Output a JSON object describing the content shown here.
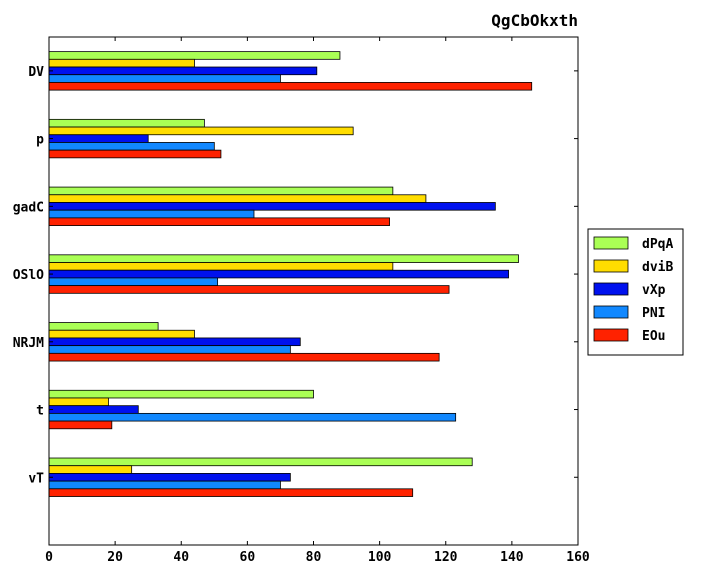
{
  "chart_data": {
    "type": "bar",
    "orientation": "horizontal",
    "title": "QgCbOkxth",
    "xlabel": "",
    "ylabel": "",
    "xlim": [
      0,
      160
    ],
    "xticks": [
      0,
      20,
      40,
      60,
      80,
      100,
      120,
      140,
      160
    ],
    "grid": false,
    "legend_position": "right",
    "categories": [
      "DV",
      "p",
      "gadC",
      "OSlO",
      "NRJM",
      "t",
      "vT"
    ],
    "series": [
      {
        "name": "dPqA",
        "color": "#aaff55",
        "values": [
          88,
          47,
          104,
          142,
          33,
          80,
          128
        ]
      },
      {
        "name": "dviB",
        "color": "#ffdd00",
        "values": [
          44,
          92,
          114,
          104,
          44,
          18,
          25
        ]
      },
      {
        "name": "vXp",
        "color": "#0011ee",
        "values": [
          81,
          30,
          135,
          139,
          76,
          27,
          73
        ]
      },
      {
        "name": "PNI",
        "color": "#1188ff",
        "values": [
          70,
          50,
          62,
          51,
          73,
          123,
          70
        ]
      },
      {
        "name": "EOu",
        "color": "#ff2200",
        "values": [
          146,
          52,
          103,
          121,
          118,
          19,
          110
        ]
      }
    ]
  }
}
